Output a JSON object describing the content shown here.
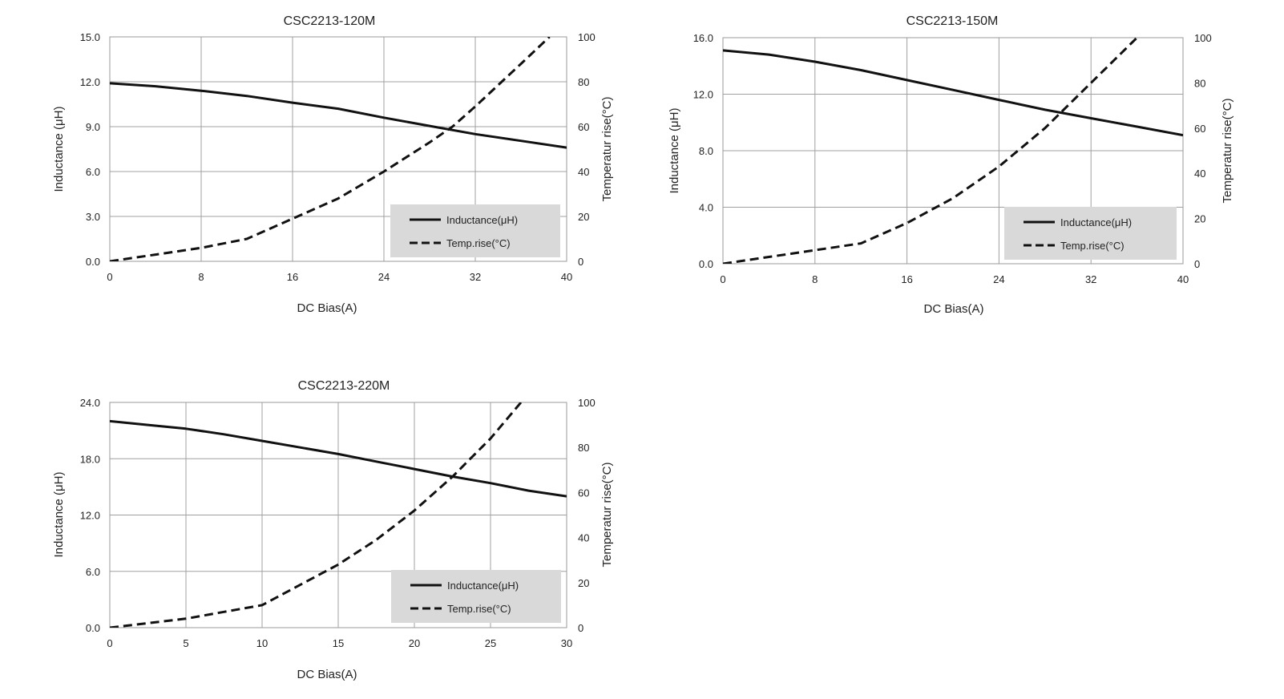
{
  "chart_data": [
    {
      "type": "line",
      "title": "CSC2213-120M",
      "xlabel": "DC Bias(A)",
      "ylabel": "Inductance (μH)",
      "y2label": "Temperatur rise(°C)",
      "xlim": [
        0,
        40
      ],
      "ylim": [
        0,
        15
      ],
      "y2lim": [
        0,
        100
      ],
      "xticks": [
        "0",
        "8",
        "16",
        "24",
        "32",
        "40"
      ],
      "yticks": [
        "0.0",
        "3.0",
        "6.0",
        "9.0",
        "12.0",
        "15.0"
      ],
      "y2ticks": [
        "0",
        "20",
        "40",
        "60",
        "80",
        "100"
      ],
      "grid": true,
      "legend_position": "bottom-right",
      "series": [
        {
          "name": "Inductance(μH)",
          "axis": "left",
          "style": "solid",
          "x": [
            0,
            4,
            8,
            12,
            16,
            20,
            24,
            28,
            32,
            36,
            40
          ],
          "y": [
            11.9,
            11.7,
            11.4,
            11.05,
            10.6,
            10.2,
            9.6,
            9.05,
            8.5,
            8.05,
            7.6
          ]
        },
        {
          "name": "Temp.rise(°C)",
          "axis": "right",
          "style": "dashed",
          "x": [
            0,
            4,
            8,
            12,
            16,
            20,
            24,
            28,
            30,
            32,
            36,
            38.5
          ],
          "y": [
            0,
            3,
            6,
            10,
            19,
            28,
            40,
            53,
            60,
            69,
            88,
            100
          ]
        }
      ]
    },
    {
      "type": "line",
      "title": "CSC2213-150M",
      "xlabel": "DC Bias(A)",
      "ylabel": "Inductance (μH)",
      "y2label": "Temperatur rise(°C)",
      "xlim": [
        0,
        40
      ],
      "ylim": [
        0,
        16
      ],
      "y2lim": [
        0,
        100
      ],
      "xticks": [
        "0",
        "8",
        "16",
        "24",
        "32",
        "40"
      ],
      "yticks": [
        "0.0",
        "4.0",
        "8.0",
        "12.0",
        "16.0"
      ],
      "y2ticks": [
        "0",
        "20",
        "40",
        "60",
        "80",
        "100"
      ],
      "grid": true,
      "legend_position": "bottom-right",
      "series": [
        {
          "name": "Inductance(μH)",
          "axis": "left",
          "style": "solid",
          "x": [
            0,
            4,
            8,
            12,
            16,
            20,
            24,
            28,
            32,
            36,
            40
          ],
          "y": [
            15.1,
            14.8,
            14.3,
            13.7,
            13.0,
            12.3,
            11.6,
            10.9,
            10.3,
            9.7,
            9.1
          ]
        },
        {
          "name": "Temp.rise(°C)",
          "axis": "right",
          "style": "dashed",
          "x": [
            0,
            4,
            8,
            12,
            16,
            20,
            24,
            28,
            30,
            32,
            36
          ],
          "y": [
            0,
            3,
            6,
            9,
            18,
            29,
            43,
            60,
            70,
            80,
            100
          ]
        }
      ]
    },
    {
      "type": "line",
      "title": "CSC2213-220M",
      "xlabel": "DC Bias(A)",
      "ylabel": "Inductance (μH)",
      "y2label": "Temperatur rise(°C)",
      "xlim": [
        0,
        30
      ],
      "ylim": [
        0,
        24
      ],
      "y2lim": [
        0,
        100
      ],
      "xticks": [
        "0",
        "5",
        "10",
        "15",
        "20",
        "25",
        "30"
      ],
      "yticks": [
        "0.0",
        "6.0",
        "12.0",
        "18.0",
        "24.0"
      ],
      "y2ticks": [
        "0",
        "20",
        "40",
        "60",
        "80",
        "100"
      ],
      "grid": true,
      "legend_position": "bottom-right",
      "series": [
        {
          "name": "Inductance(μH)",
          "axis": "left",
          "style": "solid",
          "x": [
            0,
            2.5,
            5,
            7.5,
            10,
            12.5,
            15,
            17.5,
            20,
            22.5,
            25,
            27.5,
            30
          ],
          "y": [
            22.0,
            21.6,
            21.2,
            20.6,
            19.9,
            19.2,
            18.5,
            17.7,
            16.9,
            16.1,
            15.4,
            14.6,
            14.0
          ]
        },
        {
          "name": "Temp.rise(°C)",
          "axis": "right",
          "style": "dashed",
          "x": [
            0,
            2.5,
            5,
            7.5,
            10,
            12.5,
            15,
            17.5,
            20,
            22.5,
            25,
            27
          ],
          "y": [
            0,
            2,
            4,
            7,
            10,
            19,
            28,
            39,
            52,
            67,
            84,
            100
          ]
        }
      ]
    }
  ]
}
